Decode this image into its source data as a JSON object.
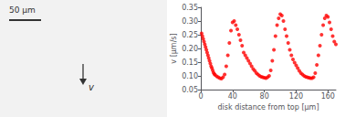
{
  "chart_data": {
    "type": "scatter",
    "xlabel": "disk distance from top [μm]",
    "ylabel": "v [μm/s]",
    "x": [
      1,
      2,
      3,
      4,
      5,
      6,
      7,
      8,
      9,
      10,
      11,
      12,
      13,
      14,
      15,
      16,
      17,
      18,
      20,
      22,
      24,
      26,
      28,
      30,
      32,
      34,
      36,
      38,
      40,
      42,
      44,
      46,
      48,
      50,
      52,
      54,
      56,
      58,
      60,
      62,
      64,
      66,
      68,
      70,
      72,
      74,
      76,
      78,
      80,
      82,
      84,
      86,
      88,
      90,
      92,
      94,
      96,
      98,
      100,
      102,
      104,
      106,
      108,
      110,
      112,
      114,
      116,
      118,
      120,
      122,
      124,
      126,
      128,
      130,
      132,
      134,
      136,
      138,
      140,
      142,
      144,
      146,
      148,
      150,
      152,
      154,
      156,
      158,
      160,
      162,
      164,
      166,
      168,
      170
    ],
    "values": [
      0.255,
      0.245,
      0.235,
      0.225,
      0.215,
      0.205,
      0.195,
      0.185,
      0.175,
      0.165,
      0.155,
      0.145,
      0.135,
      0.128,
      0.12,
      0.112,
      0.107,
      0.103,
      0.098,
      0.095,
      0.092,
      0.09,
      0.095,
      0.105,
      0.135,
      0.175,
      0.22,
      0.265,
      0.295,
      0.3,
      0.285,
      0.27,
      0.25,
      0.23,
      0.21,
      0.185,
      0.175,
      0.165,
      0.155,
      0.145,
      0.135,
      0.125,
      0.118,
      0.11,
      0.105,
      0.1,
      0.097,
      0.095,
      0.093,
      0.092,
      0.095,
      0.1,
      0.12,
      0.155,
      0.195,
      0.245,
      0.285,
      0.31,
      0.325,
      0.32,
      0.3,
      0.27,
      0.245,
      0.22,
      0.195,
      0.175,
      0.16,
      0.148,
      0.138,
      0.128,
      0.118,
      0.11,
      0.105,
      0.1,
      0.097,
      0.095,
      0.093,
      0.092,
      0.092,
      0.095,
      0.11,
      0.14,
      0.175,
      0.21,
      0.25,
      0.285,
      0.31,
      0.32,
      0.315,
      0.295,
      0.27,
      0.245,
      0.225,
      0.215
    ],
    "color": "#ff0000",
    "xlim": [
      0,
      170
    ],
    "ylim": [
      0.05,
      0.35
    ],
    "xticks": [
      0,
      40,
      80,
      120,
      160
    ],
    "yticks": [
      0.05,
      {
        "value": 0.1,
        "label": "0.10"
      },
      0.15,
      {
        "value": 0.2,
        "label": "0.20"
      },
      0.25,
      {
        "value": 0.3,
        "label": "0.30"
      },
      0.35
    ],
    "grid": false,
    "annotations": [
      "50 μm",
      "v"
    ]
  }
}
